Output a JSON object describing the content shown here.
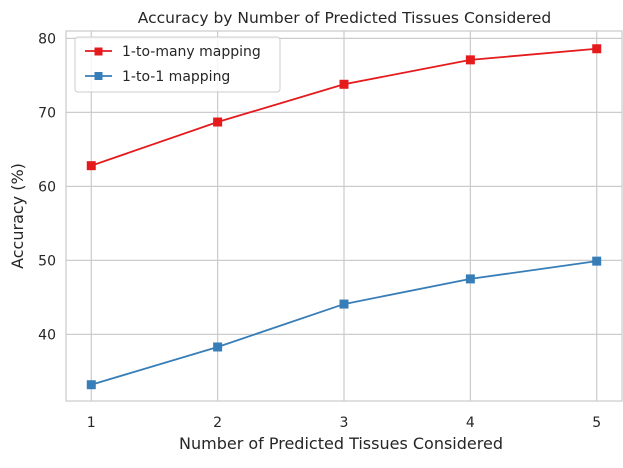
{
  "chart_data": {
    "type": "line",
    "title": "Accuracy by Number of Predicted Tissues Considered",
    "xlabel": "Number of Predicted Tissues Considered",
    "ylabel": "Accuracy (%)",
    "x": [
      1,
      2,
      3,
      4,
      5
    ],
    "xlim": [
      0.8,
      5.2
    ],
    "ylim": [
      31,
      81
    ],
    "yticks": [
      40,
      50,
      60,
      70,
      80
    ],
    "grid": true,
    "legend_position": "top-left",
    "series": [
      {
        "name": "1-to-many mapping",
        "values": [
          62.8,
          68.7,
          73.8,
          77.1,
          78.6
        ],
        "color": "#e41a1c",
        "marker": "square"
      },
      {
        "name": "1-to-1 mapping",
        "values": [
          33.2,
          38.3,
          44.1,
          47.5,
          49.9
        ],
        "color": "#377eb8",
        "marker": "square"
      }
    ]
  }
}
